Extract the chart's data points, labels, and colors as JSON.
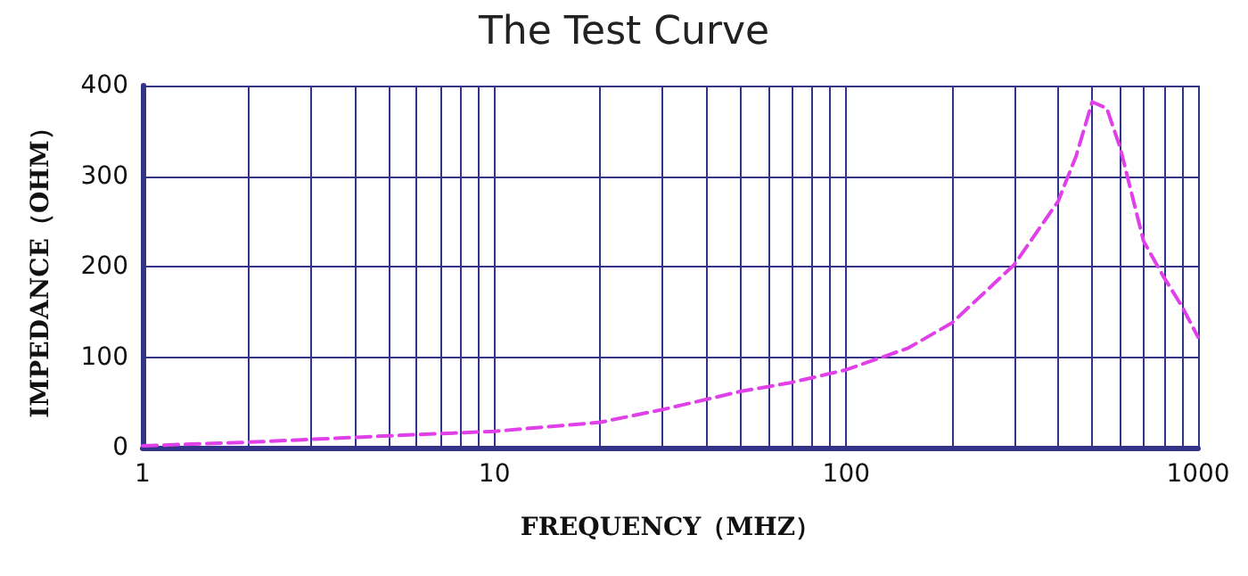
{
  "chart_data": {
    "type": "line",
    "title": "The Test Curve",
    "xlabel": "FREQUENCY（MHZ）",
    "ylabel": "IMPEDANCE（OHM）",
    "log": "x",
    "grid": true,
    "marker": "none",
    "line_style": "dashed",
    "xlim": [
      1,
      1000
    ],
    "ylim": [
      0,
      400
    ],
    "xticks": [
      1,
      {
        "value": 2,
        "label": null
      },
      {
        "value": 3,
        "label": null
      },
      {
        "value": 4,
        "label": null
      },
      {
        "value": 5,
        "label": null
      },
      {
        "value": 6,
        "label": null
      },
      {
        "value": 7,
        "label": null
      },
      {
        "value": 8,
        "label": null
      },
      {
        "value": 9,
        "label": null
      },
      10,
      {
        "value": 20,
        "label": null
      },
      {
        "value": 30,
        "label": null
      },
      {
        "value": 40,
        "label": null
      },
      {
        "value": 50,
        "label": null
      },
      {
        "value": 60,
        "label": null
      },
      {
        "value": 70,
        "label": null
      },
      {
        "value": 80,
        "label": null
      },
      {
        "value": 90,
        "label": null
      },
      100,
      {
        "value": 200,
        "label": null
      },
      {
        "value": 300,
        "label": null
      },
      {
        "value": 400,
        "label": null
      },
      {
        "value": 500,
        "label": null
      },
      {
        "value": 600,
        "label": null
      },
      {
        "value": 700,
        "label": null
      },
      {
        "value": 800,
        "label": null
      },
      {
        "value": 900,
        "label": null
      },
      1000
    ],
    "yticks": [
      0,
      100,
      200,
      300,
      400
    ],
    "x": [
      1,
      2,
      5,
      10,
      20,
      30,
      50,
      70,
      100,
      150,
      200,
      300,
      400,
      450,
      500,
      550,
      600,
      700,
      800,
      900,
      1000
    ],
    "series": [
      {
        "color": "#e040e8",
        "values": [
          2,
          6,
          13,
          18,
          28,
          42,
          62,
          72,
          86,
          110,
          138,
          202,
          272,
          322,
          382,
          375,
          332,
          228,
          188,
          156,
          122
        ]
      }
    ]
  }
}
